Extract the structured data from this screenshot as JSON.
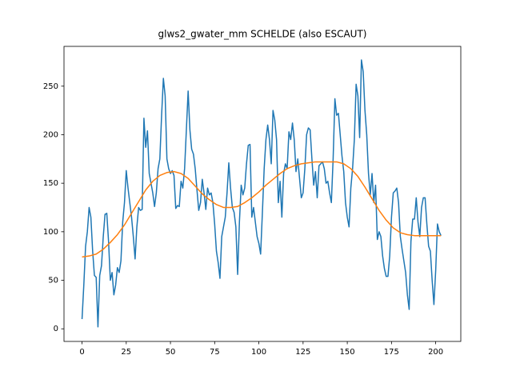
{
  "chart_data": {
    "type": "line",
    "title": "glws2_gwater_mm SCHELDE (also ESCAUT)",
    "xlim": [
      -10.2,
      214.2
    ],
    "ylim": [
      -13,
      291
    ],
    "xticks": [
      0,
      25,
      50,
      75,
      100,
      125,
      150,
      175,
      200
    ],
    "yticks": [
      0,
      50,
      100,
      150,
      200,
      250
    ],
    "series": [
      {
        "color": "#1f77b4",
        "x": [
          0,
          1,
          2,
          3,
          4,
          5,
          6,
          7,
          8,
          9,
          10,
          11,
          12,
          13,
          14,
          15,
          16,
          17,
          18,
          19,
          20,
          21,
          22,
          23,
          24,
          25,
          26,
          27,
          28,
          29,
          30,
          31,
          32,
          33,
          34,
          35,
          36,
          37,
          38,
          39,
          40,
          41,
          42,
          43,
          44,
          45,
          46,
          47,
          48,
          49,
          50,
          51,
          52,
          53,
          54,
          55,
          56,
          57,
          58,
          59,
          60,
          61,
          62,
          63,
          64,
          65,
          66,
          67,
          68,
          69,
          70,
          71,
          72,
          73,
          74,
          75,
          76,
          77,
          78,
          79,
          80,
          81,
          82,
          83,
          84,
          85,
          86,
          87,
          88,
          89,
          90,
          91,
          92,
          93,
          94,
          95,
          96,
          97,
          98,
          99,
          100,
          101,
          102,
          103,
          104,
          105,
          106,
          107,
          108,
          109,
          110,
          111,
          112,
          113,
          114,
          115,
          116,
          117,
          118,
          119,
          120,
          121,
          122,
          123,
          124,
          125,
          126,
          127,
          128,
          129,
          130,
          131,
          132,
          133,
          134,
          135,
          136,
          137,
          138,
          139,
          140,
          141,
          142,
          143,
          144,
          145,
          146,
          147,
          148,
          149,
          150,
          151,
          152,
          153,
          154,
          155,
          156,
          157,
          158,
          159,
          160,
          161,
          162,
          163,
          164,
          165,
          166,
          167,
          168,
          169,
          170,
          171,
          172,
          173,
          174,
          175,
          176,
          177,
          178,
          179,
          180,
          181,
          182,
          183,
          184,
          185,
          186,
          187,
          188,
          189,
          190,
          191,
          192,
          193,
          194,
          195,
          196,
          197,
          198,
          199,
          200,
          201,
          202,
          203
        ],
        "values": [
          10,
          45,
          85,
          100,
          125,
          115,
          80,
          55,
          53,
          2,
          55,
          65,
          95,
          118,
          119,
          90,
          50,
          58,
          35,
          45,
          63,
          58,
          70,
          110,
          130,
          163,
          145,
          130,
          115,
          95,
          72,
          105,
          125,
          122,
          123,
          217,
          187,
          204,
          160,
          150,
          140,
          126,
          140,
          165,
          175,
          220,
          258,
          240,
          175,
          165,
          160,
          163,
          158,
          124,
          127,
          126,
          152,
          145,
          165,
          205,
          245,
          205,
          185,
          180,
          165,
          143,
          122,
          130,
          154,
          140,
          123,
          145,
          138,
          140,
          130,
          108,
          80,
          68,
          52,
          95,
          105,
          115,
          140,
          171,
          145,
          125,
          120,
          105,
          56,
          110,
          148,
          138,
          145,
          170,
          189,
          190,
          115,
          125,
          110,
          95,
          88,
          77,
          120,
          165,
          195,
          210,
          195,
          170,
          225,
          215,
          195,
          130,
          152,
          115,
          160,
          170,
          165,
          203,
          195,
          212,
          195,
          162,
          175,
          155,
          135,
          140,
          165,
          200,
          207,
          205,
          175,
          148,
          162,
          135,
          168,
          170,
          172,
          165,
          150,
          152,
          140,
          130,
          175,
          237,
          220,
          222,
          200,
          178,
          162,
          130,
          115,
          105,
          145,
          165,
          195,
          252,
          240,
          197,
          277,
          265,
          225,
          200,
          160,
          138,
          160,
          130,
          148,
          92,
          100,
          95,
          75,
          62,
          54,
          54,
          75,
          115,
          140,
          142,
          145,
          130,
          95,
          82,
          70,
          58,
          35,
          20,
          90,
          113,
          113,
          135,
          110,
          95,
          125,
          135,
          135,
          108,
          85,
          80,
          50,
          25,
          60,
          108,
          100,
          96
        ]
      },
      {
        "color": "#ff7f0e",
        "x": [
          0,
          4,
          8,
          12,
          16,
          20,
          24,
          28,
          32,
          36,
          40,
          44,
          48,
          52,
          56,
          60,
          64,
          68,
          72,
          76,
          80,
          84,
          88,
          92,
          96,
          100,
          104,
          108,
          112,
          116,
          120,
          124,
          128,
          132,
          136,
          140,
          144,
          148,
          152,
          156,
          160,
          164,
          168,
          172,
          176,
          180,
          184,
          188,
          192,
          196,
          200,
          203
        ],
        "values": [
          74,
          75,
          77,
          82,
          89,
          97,
          107,
          119,
          131,
          143,
          152,
          158,
          161,
          162,
          160,
          155,
          147,
          139,
          133,
          128,
          125,
          125,
          126,
          130,
          135,
          141,
          148,
          154,
          160,
          165,
          168,
          170,
          171,
          172,
          172,
          172,
          172,
          170,
          165,
          157,
          146,
          134,
          122,
          112,
          104,
          99,
          97,
          96,
          96,
          96,
          96,
          96
        ]
      }
    ]
  }
}
